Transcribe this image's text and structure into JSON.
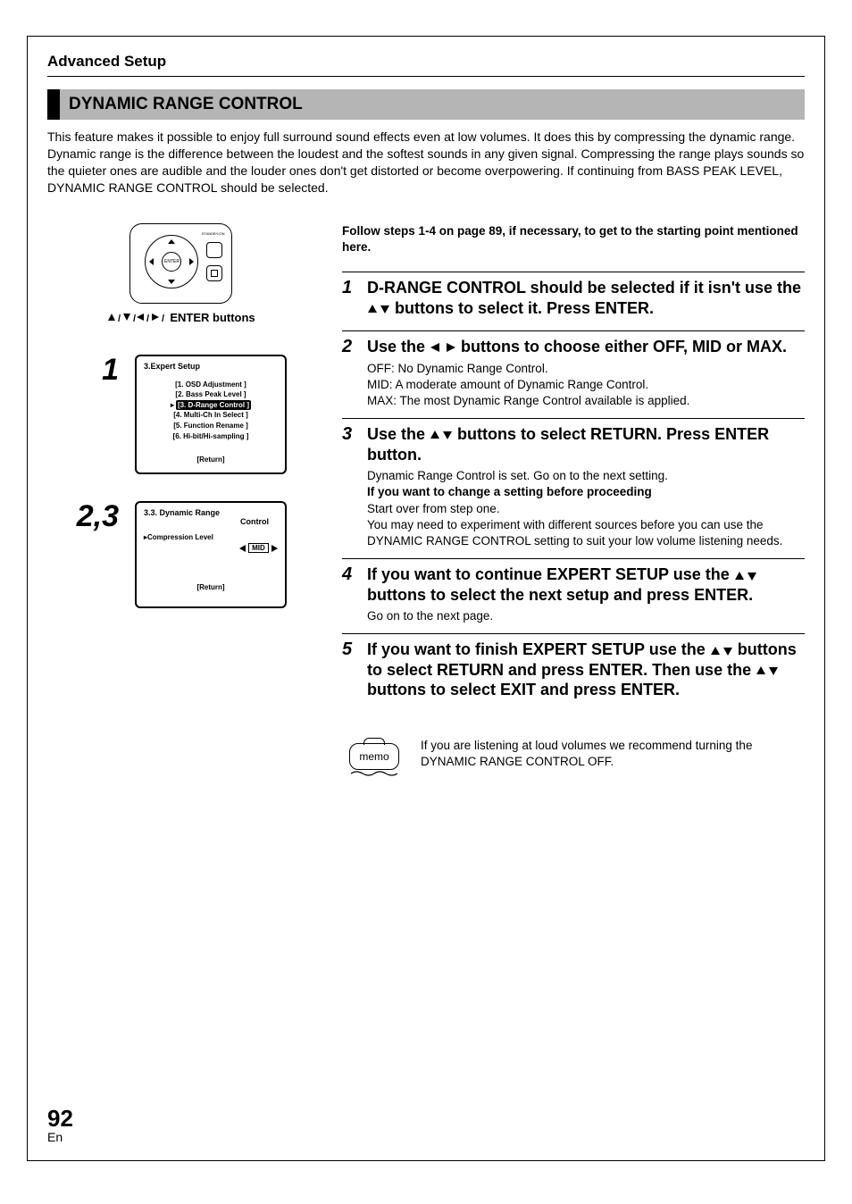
{
  "colors": {
    "text": "#000000",
    "bg": "#ffffff",
    "bar_bg": "#b5b5b5",
    "bar_border": "#000000"
  },
  "section_label": "Advanced Setup",
  "heading": "DYNAMIC RANGE CONTROL",
  "intro": "This feature makes it possible to enjoy full surround sound effects even at low volumes. It does this by compressing the dynamic range. Dynamic range is the difference between the loudest and the softest sounds in any given signal. Compressing the range plays sounds so the quieter ones are audible and the louder ones don't get distorted or become overpowering. If continuing from BASS PEAK LEVEL, DYNAMIC RANGE CONTROL should be selected.",
  "remote": {
    "standby_label": "STANDBY/ON",
    "enter_label": "ENTER",
    "caption_suffix": "ENTER buttons"
  },
  "osd1": {
    "callout": "1",
    "title": "3.Expert Setup",
    "items": [
      "[1. OSD Adjustment ]",
      "[2. Bass Peak Level ]",
      "[3. D-Range Control ]",
      "[4. Multi-Ch In Select ]",
      "[5. Function Rename ]",
      "[6. Hi-bit/Hi-sampling ]"
    ],
    "selected_index": 2,
    "return": "[Return]"
  },
  "osd2": {
    "callout": "2,3",
    "title_line1": "3.3. Dynamic  Range",
    "title_line2": "Control",
    "comp_label": "Compression Level",
    "value": "MID",
    "return": "[Return]"
  },
  "lead": "Follow steps 1-4 on page 89, if necessary, to get to the starting point mentioned here.",
  "steps": [
    {
      "n": "1",
      "title_pre": "D-RANGE CONTROL should be selected if it isn't use the ",
      "title_post": " buttons to select it. Press ENTER.",
      "arrows": "ud",
      "body": []
    },
    {
      "n": "2",
      "title_pre": "Use the ",
      "title_post": " buttons to choose either  OFF, MID or MAX.",
      "arrows": "lr",
      "body": [
        {
          "t": "plain",
          "v": "OFF: No Dynamic Range Control."
        },
        {
          "t": "plain",
          "v": "MID: A moderate amount of Dynamic Range Control."
        },
        {
          "t": "plain",
          "v": "MAX: The most Dynamic Range Control available is applied."
        }
      ]
    },
    {
      "n": "3",
      "title_pre": "Use the ",
      "title_post": " buttons to select RETURN. Press ENTER button.",
      "arrows": "ud",
      "body": [
        {
          "t": "plain",
          "v": "Dynamic Range Control is set. Go on to the next setting."
        },
        {
          "t": "bold",
          "v": "If you want to change a setting before proceeding"
        },
        {
          "t": "plain",
          "v": "Start over from step one."
        },
        {
          "t": "plain",
          "v": "You may need to experiment with different sources before you can use the DYNAMIC RANGE CONTROL setting to suit your low volume listening needs."
        }
      ]
    },
    {
      "n": "4",
      "title_pre": "If you want to continue EXPERT SETUP use the ",
      "title_post": " buttons to select the next setup and press ENTER.",
      "arrows": "ud",
      "body": [
        {
          "t": "plain",
          "v": "Go on to the next page."
        }
      ]
    },
    {
      "n": "5",
      "title_pre": "If you want to finish EXPERT SETUP use the ",
      "title_mid": " buttons to select RETURN and press ENTER. Then use the ",
      "title_post": " buttons to select EXIT and press ENTER.",
      "arrows": "ud",
      "arrows2": "ud",
      "body": []
    }
  ],
  "memo": {
    "label": "memo",
    "text": "If you are listening at loud volumes we recommend turning the DYNAMIC RANGE CONTROL OFF."
  },
  "page": {
    "num": "92",
    "lang": "En"
  }
}
